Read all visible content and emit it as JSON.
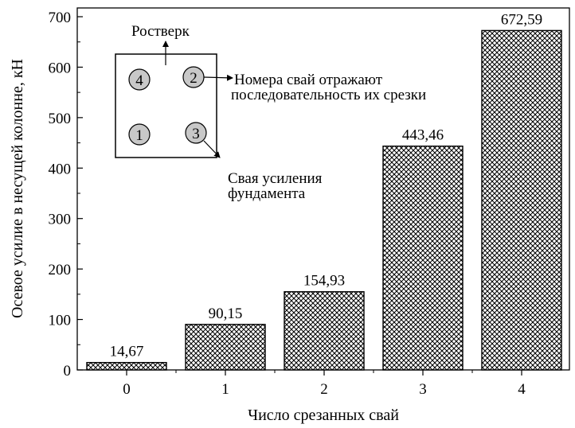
{
  "chart_data": {
    "type": "bar",
    "categories": [
      "0",
      "1",
      "2",
      "3",
      "4"
    ],
    "values": [
      14.67,
      90.15,
      154.93,
      443.46,
      672.59
    ],
    "value_labels": [
      "14,67",
      "90,15",
      "154,93",
      "443,46",
      "672,59"
    ],
    "xlabel": "Число срезанных свай",
    "ylabel": "Осевое усилие в несущей колонне, кН",
    "ylim": [
      0,
      700
    ],
    "yticks": [
      "0",
      "100",
      "200",
      "300",
      "400",
      "500",
      "600",
      "700"
    ],
    "bar_fill": "crosshatch",
    "grid": false
  },
  "inset": {
    "top_label": "Ростверк",
    "pile_numbers": [
      "4",
      "2",
      "1",
      "3"
    ],
    "pile_color": "#c8c8c8",
    "note_line1": "Номера свай отражают",
    "note_line2": "последовательность их срезки",
    "reinforcement_line1": "Свая усиления",
    "reinforcement_line2": "фундамента"
  }
}
